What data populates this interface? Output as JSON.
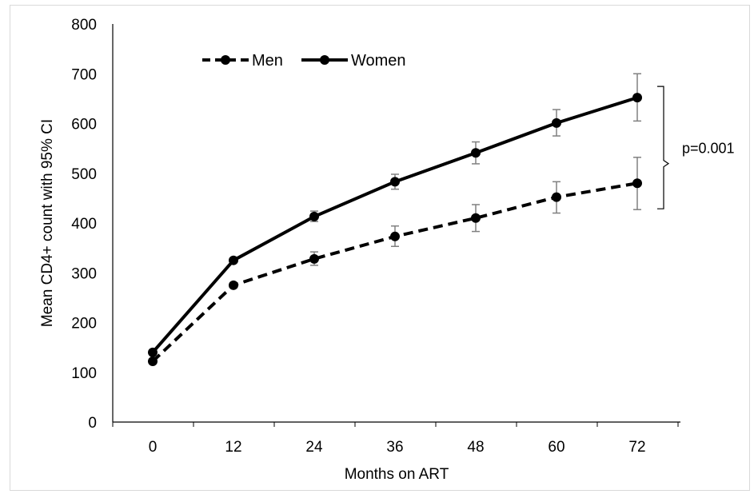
{
  "chart_data": {
    "type": "line",
    "title": "",
    "xlabel": "Months on ART",
    "ylabel": "Mean CD4+ count with 95% CI",
    "x": [
      0,
      12,
      24,
      36,
      48,
      60,
      72
    ],
    "x_tick_labels": [
      "0",
      "12",
      "24",
      "36",
      "48",
      "60",
      "72"
    ],
    "ylim": [
      0,
      800
    ],
    "y_tick_values": [
      0,
      100,
      200,
      300,
      400,
      500,
      600,
      700,
      800
    ],
    "y_tick_labels": [
      "0",
      "100",
      "200",
      "300",
      "400",
      "500",
      "600",
      "700",
      "800"
    ],
    "grid": false,
    "legend_position": "top-left",
    "series": [
      {
        "name": "Men",
        "line_style": "dashed",
        "color": "#000000",
        "values": [
          122,
          275,
          328,
          373,
          410,
          452,
          480
        ],
        "ci_lower": [
          118,
          270,
          315,
          353,
          383,
          420,
          427
        ],
        "ci_upper": [
          126,
          280,
          342,
          394,
          437,
          483,
          532
        ]
      },
      {
        "name": "Women",
        "line_style": "solid",
        "color": "#000000",
        "values": [
          140,
          325,
          413,
          483,
          541,
          601,
          652
        ],
        "ci_lower": [
          136,
          321,
          403,
          468,
          519,
          575,
          605
        ],
        "ci_upper": [
          144,
          329,
          424,
          498,
          563,
          628,
          700
        ]
      }
    ],
    "annotations": [
      {
        "text": "p=0.001",
        "type": "bracket",
        "span_from": 480,
        "span_to": 652
      }
    ],
    "error_bar_color": "#808080"
  }
}
